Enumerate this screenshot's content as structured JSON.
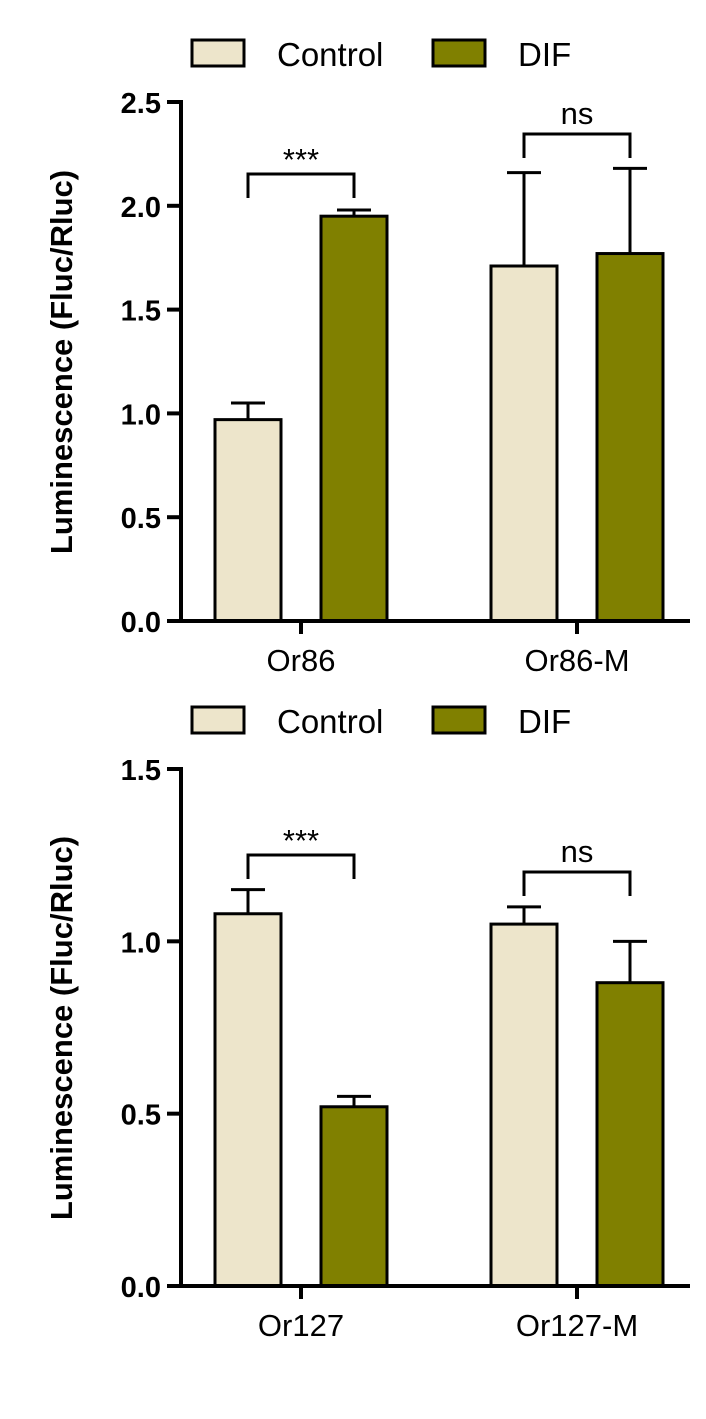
{
  "colors": {
    "control": "#ede5cb",
    "dif": "#808000",
    "stroke": "#000000"
  },
  "chart_data": [
    {
      "type": "bar",
      "title": "",
      "xlabel": "",
      "ylabel": "Luminescence (Fluc/Rluc)",
      "ylim": [
        0,
        2.5
      ],
      "yticks": [
        "0.0",
        "0.5",
        "1.0",
        "1.5",
        "2.0",
        "2.5"
      ],
      "categories": [
        "Or86",
        "Or86-M"
      ],
      "series": [
        {
          "name": "Control",
          "values": [
            0.97,
            1.71
          ],
          "errors": [
            0.08,
            0.45
          ]
        },
        {
          "name": "DIF",
          "values": [
            1.95,
            1.77
          ],
          "errors": [
            0.03,
            0.41
          ]
        }
      ],
      "legend": [
        "Control",
        "DIF"
      ],
      "legend_position": "top",
      "significance": [
        "***",
        "ns"
      ]
    },
    {
      "type": "bar",
      "title": "",
      "xlabel": "",
      "ylabel": "Luminescence (Fluc/Rluc)",
      "ylim": [
        0,
        1.5
      ],
      "yticks": [
        "0.0",
        "0.5",
        "1.0",
        "1.5"
      ],
      "categories": [
        "Or127",
        "Or127-M"
      ],
      "series": [
        {
          "name": "Control",
          "values": [
            1.08,
            1.05
          ],
          "errors": [
            0.07,
            0.05
          ]
        },
        {
          "name": "DIF",
          "values": [
            0.52,
            0.88
          ],
          "errors": [
            0.03,
            0.12
          ]
        }
      ],
      "legend": [
        "Control",
        "DIF"
      ],
      "legend_position": "top",
      "significance": [
        "***",
        "ns"
      ]
    }
  ]
}
